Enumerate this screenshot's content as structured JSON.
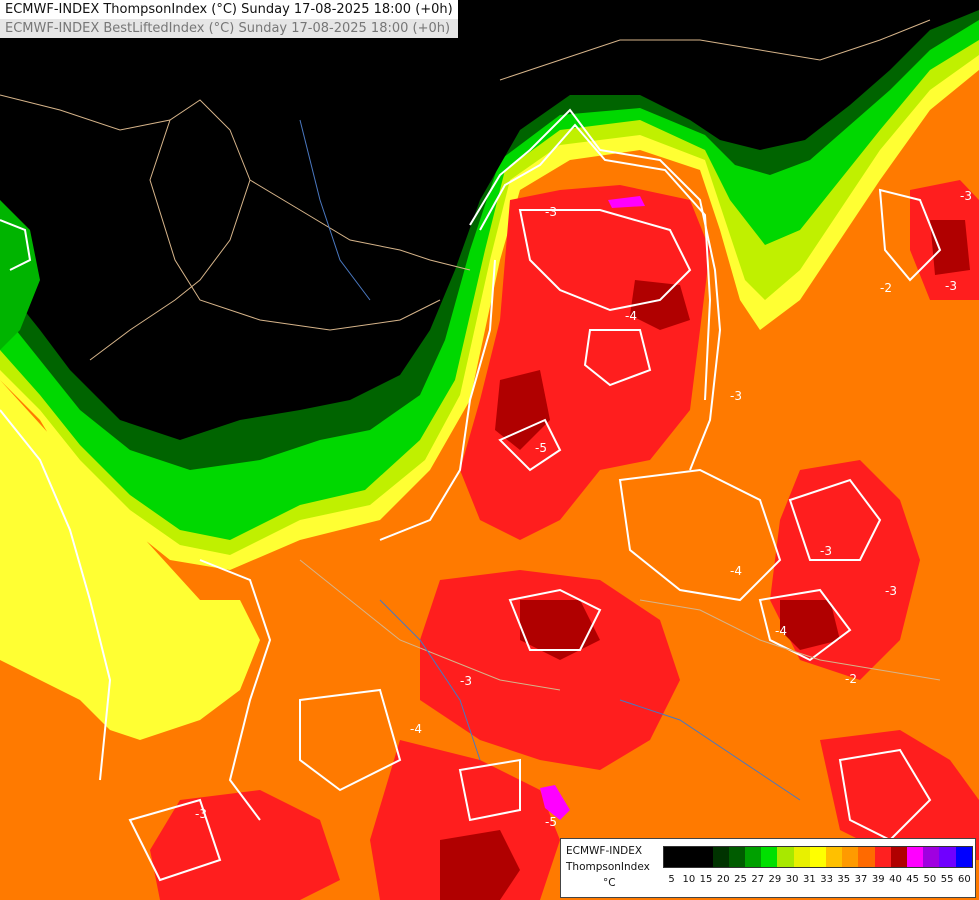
{
  "header": {
    "line1": "ECMWF-INDEX ThompsonIndex (°C) Sunday 17-08-2025 18:00 (+0h)",
    "line2": "ECMWF-INDEX BestLiftedIndex (°C) Sunday 17-08-2025 18:00 (+0h)"
  },
  "map": {
    "contour_labels": [
      "-3",
      "-4",
      "-5",
      "-3",
      "-4",
      "-3",
      "-3",
      "-4",
      "-3",
      "-5",
      "-3",
      "-2",
      "-3",
      "-2",
      "-3",
      "-4"
    ]
  },
  "legend": {
    "line1": "ECMWF-INDEX",
    "line2": "ThompsonIndex",
    "unit": "°C",
    "ticks": [
      "5",
      "10",
      "15",
      "20",
      "25",
      "27",
      "29",
      "30",
      "31",
      "33",
      "35",
      "37",
      "39",
      "40",
      "45",
      "50",
      "55",
      "60"
    ],
    "colors": [
      "#000000",
      "#000000",
      "#000000",
      "#003300",
      "#005c00",
      "#00a000",
      "#00e000",
      "#a8e800",
      "#e8f000",
      "#ffff00",
      "#ffc000",
      "#ff9a00",
      "#ff6a00",
      "#ff2020",
      "#b00000",
      "#ff00ff",
      "#a000e0",
      "#7000ff",
      "#0000ff"
    ]
  }
}
